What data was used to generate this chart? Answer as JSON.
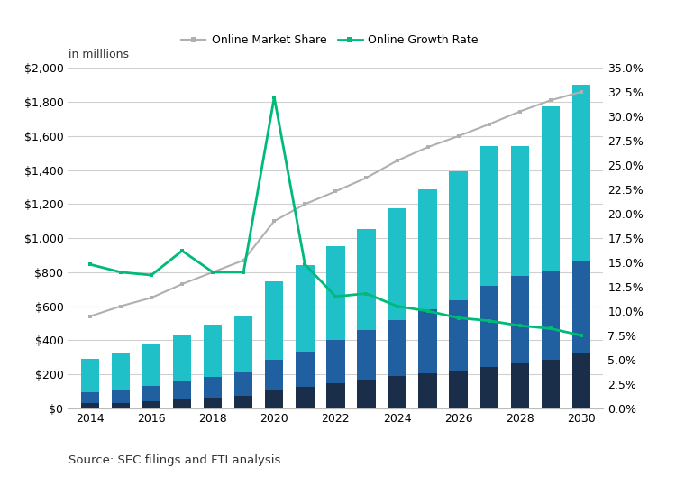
{
  "years": [
    2014,
    2015,
    2016,
    2017,
    2018,
    2019,
    2020,
    2021,
    2022,
    2023,
    2024,
    2025,
    2026,
    2027,
    2028,
    2029,
    2030
  ],
  "bar_seg1": [
    28,
    32,
    40,
    50,
    60,
    72,
    108,
    125,
    148,
    168,
    192,
    208,
    222,
    242,
    262,
    285,
    320
  ],
  "bar_seg2": [
    68,
    78,
    92,
    110,
    122,
    140,
    178,
    208,
    255,
    293,
    328,
    372,
    412,
    480,
    515,
    520,
    542
  ],
  "bar_seg3": [
    192,
    218,
    245,
    275,
    308,
    330,
    462,
    510,
    550,
    592,
    658,
    705,
    758,
    818,
    762,
    968,
    1038
  ],
  "market_share": [
    540,
    600,
    650,
    730,
    800,
    870,
    1100,
    1200,
    1275,
    1355,
    1455,
    1535,
    1600,
    1670,
    1745,
    1810,
    1860
  ],
  "growth_rate": [
    0.148,
    0.14,
    0.137,
    0.162,
    0.14,
    0.14,
    0.32,
    0.148,
    0.115,
    0.118,
    0.105,
    0.1,
    0.093,
    0.09,
    0.085,
    0.082,
    0.075
  ],
  "color_seg1": "#1a2e4a",
  "color_seg2": "#2060a0",
  "color_seg3": "#20c0c8",
  "color_market_share": "#b0b0b0",
  "color_growth_rate": "#00bb77",
  "ylim_left": [
    0,
    2000
  ],
  "ylim_right": [
    0.0,
    0.35
  ],
  "yticks_left": [
    0,
    200,
    400,
    600,
    800,
    1000,
    1200,
    1400,
    1600,
    1800,
    2000
  ],
  "yticks_right": [
    0.0,
    0.025,
    0.05,
    0.075,
    0.1,
    0.125,
    0.15,
    0.175,
    0.2,
    0.225,
    0.25,
    0.275,
    0.3,
    0.325,
    0.35
  ],
  "xticks": [
    2014,
    2016,
    2018,
    2020,
    2022,
    2024,
    2026,
    2028,
    2030
  ],
  "label_in_millions": "in milllions",
  "legend_ms": "Online Market Share",
  "legend_gr": "Online Growth Rate",
  "source": "Source: SEC filings and FTI analysis",
  "bar_width": 0.6
}
